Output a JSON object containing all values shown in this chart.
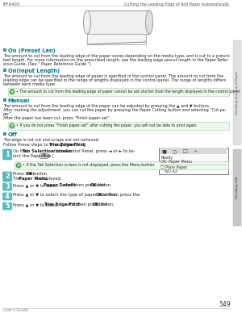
{
  "page_num": "549",
  "header_left": "iPF6400",
  "header_right": "Cutting the Leading Edge of Roll Paper Automatically",
  "footer_left": "User's Guide",
  "side_tab_top": "Handling and Use of Paper",
  "side_tab_bottom": "Handling rolls",
  "bg_color": "#ffffff",
  "section_bg": "#eef8ee",
  "section_border": "#aaccaa",
  "teal_color": "#3bbfbf",
  "step_bg": "#55bbbb",
  "header_line_color": "#bbbbbb",
  "note_icon_color": "#55aa55",
  "bullet_color": "#3399aa",
  "bold_teal": "#007788",
  "text_color": "#222222",
  "gray_text": "#666666"
}
